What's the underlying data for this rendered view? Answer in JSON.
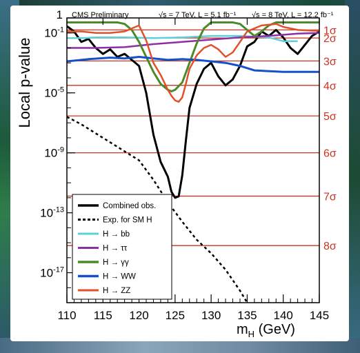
{
  "chart_data": {
    "type": "line",
    "header_left": "CMS Preliminary",
    "header_7tev": "√s = 7 TeV, L = 5.1 fb⁻¹",
    "header_8tev": "√s = 8 TeV, L = 12.2 fb⁻¹",
    "ylabel": "Local p-value",
    "xlabel": "m",
    "xlabel_sub": "H",
    "xlabel_unit": " (GeV)",
    "xlim": [
      110,
      145
    ],
    "ylim_log10": [
      -19,
      0
    ],
    "y_scale": "log",
    "x_ticks": [
      {
        "value": 110,
        "label": "110"
      },
      {
        "value": 115,
        "label": "115"
      },
      {
        "value": 120,
        "label": "120"
      },
      {
        "value": 125,
        "label": "125"
      },
      {
        "value": 130,
        "label": "130"
      },
      {
        "value": 135,
        "label": "135"
      },
      {
        "value": 140,
        "label": "140"
      },
      {
        "value": 145,
        "label": "145"
      }
    ],
    "y_ticks": [
      {
        "log10": 0,
        "base": "1",
        "exp": ""
      },
      {
        "log10": -1,
        "base": "10",
        "exp": "-1"
      },
      {
        "log10": -5,
        "base": "10",
        "exp": "-5"
      },
      {
        "log10": -9,
        "base": "10",
        "exp": "-9"
      },
      {
        "log10": -13,
        "base": "10",
        "exp": "-13"
      },
      {
        "log10": -17,
        "base": "10",
        "exp": "-17"
      }
    ],
    "sigma_lines": [
      {
        "log10": -0.8,
        "label": "1σ"
      },
      {
        "log10": -1.34,
        "label": "2σ"
      },
      {
        "log10": -2.87,
        "label": "3σ"
      },
      {
        "log10": -4.5,
        "label": "4σ"
      },
      {
        "log10": -6.54,
        "label": "5σ"
      },
      {
        "log10": -9.0,
        "label": "6σ"
      },
      {
        "log10": -11.89,
        "label": "7σ"
      },
      {
        "log10": -15.19,
        "label": "8σ"
      }
    ],
    "sigma_color": "#cc3322",
    "series": [
      {
        "name": "Combined obs.",
        "color": "#000000",
        "width": 3,
        "dash": "",
        "points": [
          [
            110,
            -0.55
          ],
          [
            111,
            -0.9
          ],
          [
            112,
            -1.6
          ],
          [
            113,
            -1.4
          ],
          [
            114,
            -2.0
          ],
          [
            115,
            -2.4
          ],
          [
            116,
            -2.1
          ],
          [
            117,
            -2.6
          ],
          [
            118,
            -2.4
          ],
          [
            119,
            -2.8
          ],
          [
            120,
            -3.2
          ],
          [
            121,
            -5.0
          ],
          [
            122,
            -7.8
          ],
          [
            123,
            -9.6
          ],
          [
            124,
            -10.6
          ],
          [
            124.5,
            -11.6
          ],
          [
            125,
            -12.0
          ],
          [
            125.5,
            -11.9
          ],
          [
            126,
            -10.5
          ],
          [
            126.5,
            -8.2
          ],
          [
            127,
            -6.0
          ],
          [
            128,
            -4.4
          ],
          [
            129,
            -3.4
          ],
          [
            130,
            -3.0
          ],
          [
            131,
            -3.9
          ],
          [
            132,
            -4.5
          ],
          [
            133,
            -4.1
          ],
          [
            134,
            -3.2
          ],
          [
            135,
            -1.9
          ],
          [
            136,
            -1.6
          ],
          [
            137,
            -0.9
          ],
          [
            138,
            -1.2
          ],
          [
            139,
            -0.8
          ],
          [
            140,
            -1.3
          ],
          [
            141,
            -2.0
          ],
          [
            142,
            -2.4
          ],
          [
            143,
            -1.8
          ],
          [
            144,
            -1.2
          ],
          [
            145,
            -0.9
          ]
        ]
      },
      {
        "name": "Exp. for SM H",
        "color": "#000000",
        "width": 2.5,
        "dash": "4,4",
        "points": [
          [
            110,
            -6.6
          ],
          [
            112,
            -7.1
          ],
          [
            114,
            -7.7
          ],
          [
            116,
            -8.3
          ],
          [
            118,
            -8.9
          ],
          [
            120,
            -9.5
          ],
          [
            122,
            -10.8
          ],
          [
            124,
            -12.3
          ],
          [
            126,
            -13.6
          ],
          [
            128,
            -14.8
          ],
          [
            130,
            -15.7
          ],
          [
            132,
            -16.8
          ],
          [
            134,
            -18.2
          ],
          [
            135,
            -19.0
          ]
        ]
      },
      {
        "name": "H → bb",
        "color": "#5cd0dc",
        "width": 2.5,
        "dash": "",
        "points": [
          [
            110,
            -1.35
          ],
          [
            112,
            -1.35
          ],
          [
            114,
            -1.3
          ],
          [
            118,
            -1.3
          ],
          [
            122,
            -1.35
          ],
          [
            126,
            -1.3
          ],
          [
            130,
            -1.2
          ],
          [
            134,
            -1.2
          ],
          [
            138,
            -1.3
          ],
          [
            140,
            -1.55
          ],
          [
            142,
            -1.55
          ]
        ]
      },
      {
        "name": "H → ττ",
        "color": "#8a2fa6",
        "width": 2.5,
        "dash": "",
        "points": [
          [
            110,
            -2.0
          ],
          [
            114,
            -2.0
          ],
          [
            118,
            -1.95
          ],
          [
            122,
            -1.75
          ],
          [
            126,
            -1.6
          ],
          [
            130,
            -1.45
          ],
          [
            134,
            -1.3
          ],
          [
            138,
            -1.2
          ],
          [
            142,
            -1.05
          ],
          [
            145,
            -1.0
          ]
        ]
      },
      {
        "name": "H → γγ",
        "color": "#4a8a2a",
        "width": 3,
        "dash": "",
        "points": [
          [
            110,
            -0.3
          ],
          [
            117,
            -0.3
          ],
          [
            118,
            -0.4
          ],
          [
            119,
            -0.8
          ],
          [
            120,
            -1.6
          ],
          [
            121,
            -2.6
          ],
          [
            122,
            -3.6
          ],
          [
            123,
            -4.4
          ],
          [
            124,
            -4.8
          ],
          [
            124.5,
            -4.9
          ],
          [
            125,
            -4.8
          ],
          [
            126,
            -4.3
          ],
          [
            127,
            -3.0
          ],
          [
            128,
            -1.7
          ],
          [
            129,
            -0.7
          ],
          [
            130,
            -0.3
          ],
          [
            133,
            -0.3
          ],
          [
            134,
            -0.4
          ],
          [
            135,
            -0.8
          ],
          [
            136,
            -1.2
          ],
          [
            137,
            -0.9
          ],
          [
            138,
            -0.5
          ],
          [
            139,
            -0.3
          ],
          [
            145,
            -0.3
          ]
        ]
      },
      {
        "name": "H → WW",
        "color": "#1450c8",
        "width": 3,
        "dash": "",
        "points": [
          [
            110,
            -2.9
          ],
          [
            113,
            -2.75
          ],
          [
            116,
            -2.65
          ],
          [
            118,
            -2.7
          ],
          [
            120,
            -2.6
          ],
          [
            122,
            -2.7
          ],
          [
            124,
            -2.8
          ],
          [
            126,
            -2.75
          ],
          [
            128,
            -2.8
          ],
          [
            130,
            -2.9
          ],
          [
            132,
            -3.0
          ],
          [
            134,
            -3.2
          ],
          [
            136,
            -3.5
          ],
          [
            140,
            -3.6
          ],
          [
            145,
            -3.6
          ]
        ]
      },
      {
        "name": "H → ZZ",
        "color": "#e0502a",
        "width": 2.5,
        "dash": "",
        "points": [
          [
            110,
            -0.9
          ],
          [
            112,
            -0.9
          ],
          [
            114,
            -1.0
          ],
          [
            116,
            -1.0
          ],
          [
            118,
            -0.9
          ],
          [
            120,
            -0.5
          ],
          [
            121,
            -1.5
          ],
          [
            122,
            -3.0
          ],
          [
            123,
            -3.8
          ],
          [
            124,
            -4.8
          ],
          [
            124.5,
            -5.2
          ],
          [
            125,
            -5.5
          ],
          [
            125.5,
            -5.6
          ],
          [
            126,
            -5.3
          ],
          [
            126.5,
            -4.4
          ],
          [
            127,
            -3.4
          ],
          [
            128,
            -2.5
          ],
          [
            129,
            -2.0
          ],
          [
            130,
            -1.8
          ],
          [
            131,
            -2.1
          ],
          [
            132,
            -2.6
          ],
          [
            133,
            -2.3
          ],
          [
            134,
            -1.6
          ],
          [
            135,
            -0.9
          ],
          [
            136,
            -0.7
          ],
          [
            137,
            -0.5
          ],
          [
            139,
            -0.4
          ],
          [
            140,
            -0.6
          ],
          [
            142,
            -0.8
          ],
          [
            144,
            -0.85
          ],
          [
            145,
            -0.85
          ]
        ]
      }
    ],
    "legend_position": "bottom-left"
  }
}
